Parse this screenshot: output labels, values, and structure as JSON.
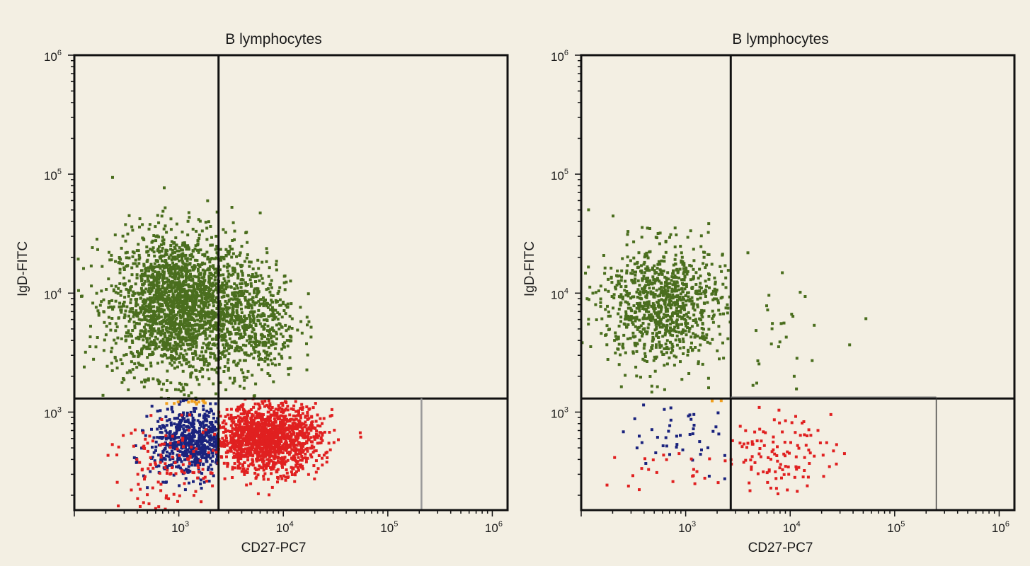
{
  "chart_data": [
    {
      "type": "scatter",
      "title": "B lymphocytes",
      "xlabel": "CD27-PC7",
      "ylabel": "IgD-FITC",
      "xscale": "log",
      "yscale": "log",
      "xlim": [
        100,
        1400000
      ],
      "ylim": [
        150,
        1000000
      ],
      "xticks": [
        1000,
        10000,
        100000,
        1000000
      ],
      "yticks": [
        1000,
        10000,
        100000,
        1000000
      ],
      "gates": {
        "x": 2400,
        "y": 1300,
        "secondary_x": 210000
      },
      "series": [
        {
          "color": "#4a6e1e",
          "center": [
            1000,
            8000
          ],
          "spread": [
            0.32,
            0.3
          ],
          "count": 2200,
          "x_range": [
            100,
            100000
          ],
          "y_range": [
            1300,
            100000
          ]
        },
        {
          "color": "#4a6e1e",
          "center": [
            5000,
            6000
          ],
          "spread": [
            0.22,
            0.25
          ],
          "count": 500,
          "x_range": [
            2400,
            100000
          ],
          "y_range": [
            1300,
            50000
          ]
        },
        {
          "color": "#1a237e",
          "center": [
            1400,
            550
          ],
          "spread": [
            0.2,
            0.14
          ],
          "count": 700,
          "x_range": [
            200,
            2400
          ],
          "y_range": [
            150,
            1300
          ]
        },
        {
          "color": "#e02020",
          "center": [
            7000,
            600
          ],
          "spread": [
            0.25,
            0.14
          ],
          "count": 1500,
          "x_range": [
            2400,
            60000
          ],
          "y_range": [
            150,
            1300
          ]
        },
        {
          "color": "#e02020",
          "center": [
            1000,
            350
          ],
          "spread": [
            0.35,
            0.18
          ],
          "count": 150,
          "x_range": [
            200,
            2400
          ],
          "y_range": [
            150,
            1300
          ]
        },
        {
          "color": "#f0a020",
          "center": [
            1500,
            1250
          ],
          "spread": [
            0.15,
            0.02
          ],
          "count": 20,
          "x_range": [
            600,
            2400
          ],
          "y_range": [
            1150,
            1300
          ]
        }
      ]
    },
    {
      "type": "scatter",
      "title": "B lymphocytes",
      "xlabel": "CD27-PC7",
      "ylabel": "IgD-FITC",
      "xscale": "log",
      "yscale": "log",
      "xlim": [
        100,
        1400000
      ],
      "ylim": [
        150,
        1000000
      ],
      "xticks": [
        1000,
        10000,
        100000,
        1000000
      ],
      "yticks": [
        1000,
        10000,
        100000,
        1000000
      ],
      "gates": {
        "x": 2700,
        "y": 1300,
        "secondary_x": 250000
      },
      "series": [
        {
          "color": "#4a6e1e",
          "center": [
            600,
            8000
          ],
          "spread": [
            0.3,
            0.25
          ],
          "count": 950,
          "x_range": [
            100,
            2700
          ],
          "y_range": [
            1300,
            80000
          ]
        },
        {
          "color": "#4a6e1e",
          "center": [
            8000,
            5000
          ],
          "spread": [
            0.3,
            0.25
          ],
          "count": 30,
          "x_range": [
            2700,
            60000
          ],
          "y_range": [
            1300,
            30000
          ]
        },
        {
          "color": "#1a237e",
          "center": [
            800,
            600
          ],
          "spread": [
            0.3,
            0.15
          ],
          "count": 45,
          "x_range": [
            100,
            2700
          ],
          "y_range": [
            150,
            1300
          ]
        },
        {
          "color": "#e02020",
          "center": [
            6000,
            450
          ],
          "spread": [
            0.3,
            0.15
          ],
          "count": 130,
          "x_range": [
            2700,
            60000
          ],
          "y_range": [
            150,
            1300
          ]
        },
        {
          "color": "#e02020",
          "center": [
            700,
            320
          ],
          "spread": [
            0.3,
            0.1
          ],
          "count": 25,
          "x_range": [
            100,
            2700
          ],
          "y_range": [
            150,
            1300
          ]
        },
        {
          "color": "#f0a020",
          "center": [
            2000,
            1250
          ],
          "spread": [
            0.05,
            0.01
          ],
          "count": 2,
          "x_range": [
            1500,
            2700
          ],
          "y_range": [
            1200,
            1300
          ]
        }
      ]
    }
  ]
}
